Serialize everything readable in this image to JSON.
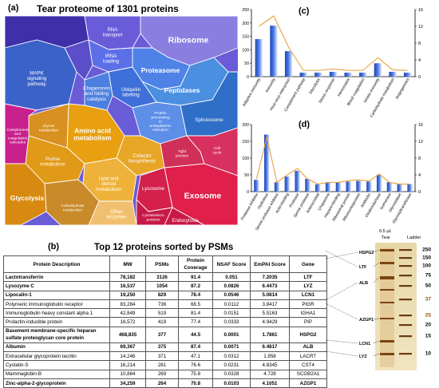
{
  "panel_a": {
    "label": "(a)",
    "title": "Tear proteome of 1301 proteins",
    "cells": [
      {
        "text": "Ribosome",
        "color": "#8a7fe0",
        "size": "big"
      },
      {
        "text": "RNA\ntransport",
        "color": "#6a5cd8",
        "size": "small"
      },
      {
        "text": "tRNA\nloading",
        "color": "#5b6fe8",
        "size": "small"
      },
      {
        "text": "Proteasome",
        "color": "#4f82e6",
        "size": "mid"
      },
      {
        "text": "Peptidases",
        "color": "#4a8fe0",
        "size": "mid"
      },
      {
        "text": "Ubiquitin\nlabeling",
        "color": "#3f6fd8",
        "size": "small"
      },
      {
        "text": "Chaperones\nand folding\ncatalysis",
        "color": "#4b7fe0",
        "size": "small"
      },
      {
        "text": "MAPK\nsignaling\npathway",
        "color": "#3a62c8",
        "size": "small"
      },
      {
        "text": "Protein\nprocessing\nin\nendoplasmic\nreticulum",
        "color": "#5d8fe8",
        "size": "tiny"
      },
      {
        "text": "Spliceosome",
        "color": "#2f6fc8",
        "size": "small"
      },
      {
        "text": "Amino acid\nmetabolism",
        "color": "#e8a010",
        "size": "mid"
      },
      {
        "text": "Purine\nmetabolism",
        "color": "#e09a18",
        "size": "small"
      },
      {
        "text": "Glycan\nmetabolism",
        "color": "#d89020",
        "size": "tiny"
      },
      {
        "text": "Cofactor\nbiosynthesis",
        "color": "#e7a626",
        "size": "small"
      },
      {
        "text": "Lipid and\nsteroid\nmetabolism",
        "color": "#eeb23a",
        "size": "small"
      },
      {
        "text": "Glycolysis",
        "color": "#d88a10",
        "size": "mid"
      },
      {
        "text": "Carbohydrate\nmetabolism",
        "color": "#c98a2a",
        "size": "tiny"
      },
      {
        "text": "Other\nenzymes",
        "color": "#f0c070",
        "size": "small"
      },
      {
        "text": "Exosome",
        "color": "#e0204a",
        "size": "big"
      },
      {
        "text": "Lysosome",
        "color": "#d4204a",
        "size": "small"
      },
      {
        "text": "Cytoskeleton\nproteins",
        "color": "#c81848",
        "size": "tiny"
      },
      {
        "text": "Endocytosis",
        "color": "#c81848",
        "size": "small"
      },
      {
        "text": "Tight\njunction",
        "color": "#d03058",
        "size": "tiny"
      },
      {
        "text": "Cell\ncycle",
        "color": "#d83060",
        "size": "tiny"
      },
      {
        "text": "Complement\nand\ncoagulation\ncascades",
        "color": "#c8208c",
        "size": "tiny"
      }
    ]
  },
  "panel_c": {
    "label": "(c)",
    "chart_data": {
      "type": "bar",
      "categories": [
        "Adaptive immunity",
        "Immunity",
        "Host-virus interaction",
        "Complement pathway",
        "Glycolysis",
        "Stress response",
        "Hemostasis",
        "Blood coagulation",
        "Innate immunity",
        "Carbohydrate metabolism",
        "Angiogenesis"
      ],
      "series": [
        {
          "kind": "bar",
          "values": [
            140,
            190,
            95,
            15,
            15,
            18,
            15,
            15,
            50,
            18,
            15
          ],
          "color": "#2f5fd0"
        },
        {
          "kind": "line",
          "values": [
            12.0,
            14.5,
            7.0,
            1.5,
            1.5,
            1.8,
            1.5,
            1.5,
            4.5,
            1.6,
            1.5
          ],
          "color": "#e8a040"
        }
      ],
      "left_ticks": [
        0,
        50,
        100,
        150,
        200,
        250
      ],
      "right_ticks": [
        0,
        4,
        8,
        12,
        16
      ],
      "ylim_left": [
        0,
        250
      ],
      "ylim_right": [
        0,
        16
      ]
    }
  },
  "panel_d": {
    "label": "(d)",
    "chart_data": {
      "type": "bar",
      "categories": [
        "Protease inhibitor",
        "Hydrolase",
        "Serine protease inhibitor",
        "Actin-binding",
        "Protease",
        "Serine protease",
        "Antimicrobial",
        "Chaperone",
        "Heparin-binding",
        "Ribosomal protein",
        "Ribonucleoprotein",
        "Antibiotic",
        "Oxidoreductase",
        "Isomerase",
        "Glycosidase",
        "Glycosyltransferase"
      ],
      "series": [
        {
          "kind": "bar",
          "values": [
            35,
            170,
            28,
            45,
            62,
            38,
            22,
            28,
            28,
            30,
            32,
            30,
            50,
            28,
            22,
            22
          ],
          "color": "#2f5fd0"
        },
        {
          "kind": "line",
          "values": [
            3.0,
            13.0,
            2.2,
            4.0,
            5.5,
            3.0,
            1.8,
            2.2,
            2.2,
            2.6,
            2.8,
            2.5,
            4.2,
            2.2,
            1.8,
            1.8
          ],
          "color": "#e8a040"
        }
      ],
      "left_ticks": [
        0,
        50,
        100,
        150,
        200
      ],
      "right_ticks": [
        0,
        4,
        8,
        12,
        16
      ],
      "ylim_left": [
        0,
        200
      ],
      "ylim_right": [
        0,
        16
      ]
    }
  },
  "panel_b": {
    "label": "(b)",
    "title": "Top 12 proteins sorted by PSMs",
    "headers": [
      "Protein Description",
      "MW",
      "PSMs",
      "Protein Coverage",
      "NSAF Score",
      "EmPAI Score",
      "Gene"
    ],
    "rows": [
      {
        "bold": true,
        "cells": [
          "Lactotransferrin",
          "78,182",
          "3126",
          "91.4",
          "0.051",
          "7.2035",
          "LTF"
        ]
      },
      {
        "bold": true,
        "cells": [
          "Lysozyme C",
          "16,537",
          "1054",
          "87.2",
          "0.0826",
          "6.4473",
          "LYZ"
        ]
      },
      {
        "bold": true,
        "cells": [
          "Lipocalin-1",
          "19,250",
          "829",
          "78.4",
          "0.0546",
          "5.0814",
          "LCN1"
        ]
      },
      {
        "bold": false,
        "cells": [
          "Polymeric immunoglobulin receptor",
          "83,284",
          "736",
          "68.5",
          "0.0112",
          "3.8417",
          "PIGR"
        ]
      },
      {
        "bold": false,
        "cells": [
          "Immunoglobulin heavy constant alpha 1",
          "42,849",
          "519",
          "81.4",
          "0.0151",
          "5.5163",
          "IGHA1"
        ]
      },
      {
        "bold": false,
        "cells": [
          "Prolactin-inducible protein",
          "16,572",
          "419",
          "77.4",
          "0.0333",
          "4.9429",
          "PIP"
        ]
      },
      {
        "bold": true,
        "tall": true,
        "cells": [
          "Basement membrane-specific heparan sulfate proteoglycan core protein",
          "468,835",
          "377",
          "44.5",
          "0.0001",
          "1.7861",
          "HSPG2"
        ]
      },
      {
        "bold": true,
        "cells": [
          "Albumin",
          "69,367",
          "375",
          "87.4",
          "0.0071",
          "6.4817",
          "ALB"
        ]
      },
      {
        "bold": false,
        "cells": [
          "Extracellular glycoprotein lacritin",
          "14,246",
          "371",
          "47.1",
          "0.0312",
          "1.958",
          "LACRT"
        ]
      },
      {
        "bold": false,
        "cells": [
          "Cystatin-S",
          "16,214",
          "281",
          "76.6",
          "0.0231",
          "4.8345",
          "CST4"
        ]
      },
      {
        "bold": false,
        "cells": [
          "Mammaglobin-B",
          "10,884",
          "269",
          "75.8",
          "0.0328",
          "4.728",
          "SCGB2A1"
        ]
      },
      {
        "bold": true,
        "cells": [
          "Zinc-alpha-2-glycoprotein",
          "34,259",
          "264",
          "70.8",
          "0.0103",
          "4.1051",
          "AZGP1"
        ]
      }
    ]
  },
  "gel": {
    "volume_label": "0.5 µL",
    "tear_label": "Tear",
    "ladder_label": "Ladder",
    "band_labels": [
      "HSPG2",
      "LTF",
      "ALB",
      "AZGP1",
      "LCN1",
      "LYZ"
    ],
    "ladder_values": [
      "250",
      "150",
      "100",
      "75",
      "50",
      "37",
      "25",
      "20",
      "15",
      "10"
    ]
  }
}
